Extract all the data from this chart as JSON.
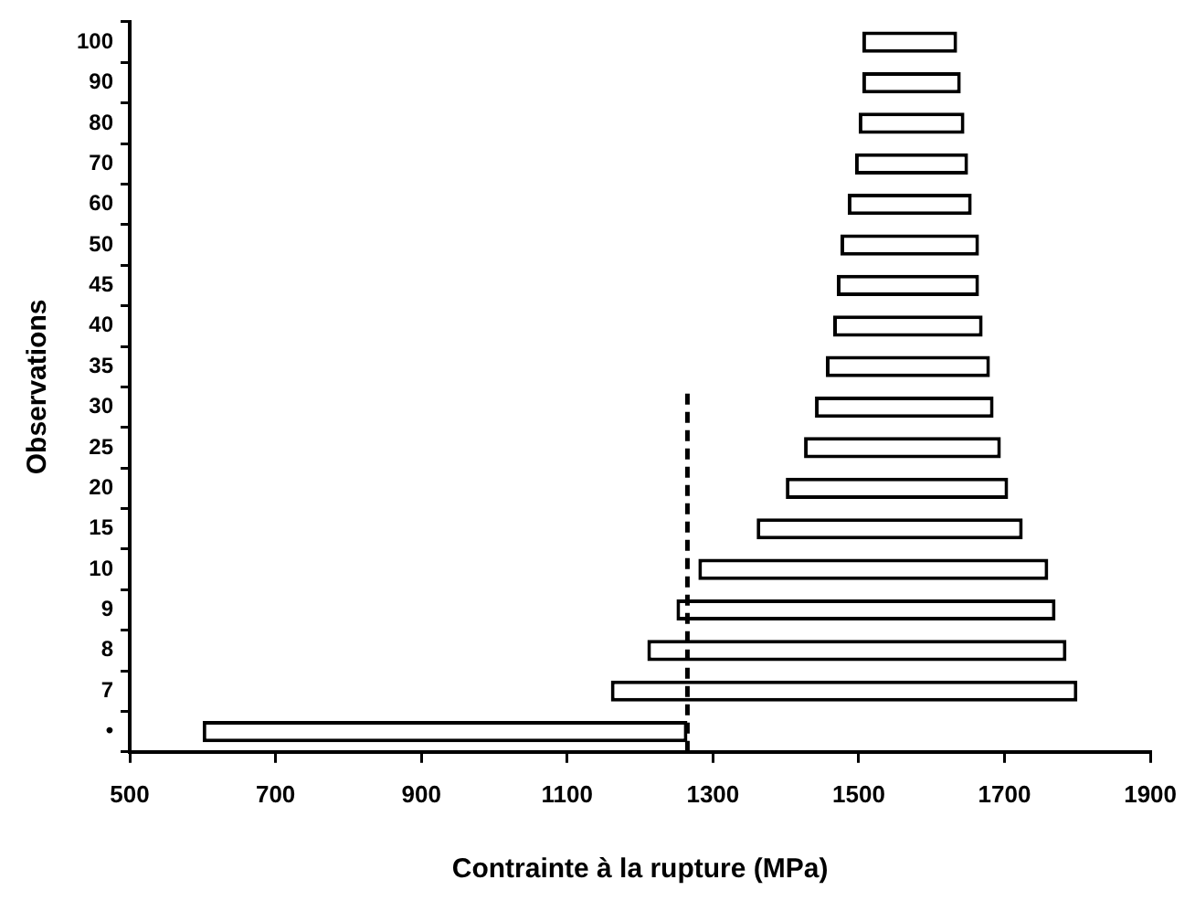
{
  "chart_data": {
    "type": "bar",
    "orientation": "horizontal",
    "xlabel": "Contrainte à la rupture (MPa)",
    "ylabel": "Observations",
    "categories": [
      "100",
      "90",
      "80",
      "70",
      "60",
      "50",
      "45",
      "40",
      "35",
      "30",
      "25",
      "20",
      "15",
      "10",
      "9",
      "8",
      "7",
      "•"
    ],
    "base": [
      1505,
      1505,
      1500,
      1495,
      1485,
      1475,
      1470,
      1465,
      1455,
      1440,
      1425,
      1400,
      1360,
      1280,
      1250,
      1210,
      1160,
      600
    ],
    "values": [
      130,
      135,
      145,
      155,
      170,
      190,
      195,
      205,
      225,
      245,
      270,
      305,
      365,
      480,
      520,
      575,
      640,
      665
    ],
    "color": "#ffffff",
    "xlim": [
      500,
      1900
    ],
    "xticks": [
      500,
      700,
      900,
      1100,
      1300,
      1500,
      1700,
      1900
    ],
    "ref_lines": [
      {
        "axis": "x",
        "value": 1265,
        "line_style": "dashed",
        "color": "#000000"
      }
    ],
    "grid": false,
    "legend": false
  }
}
